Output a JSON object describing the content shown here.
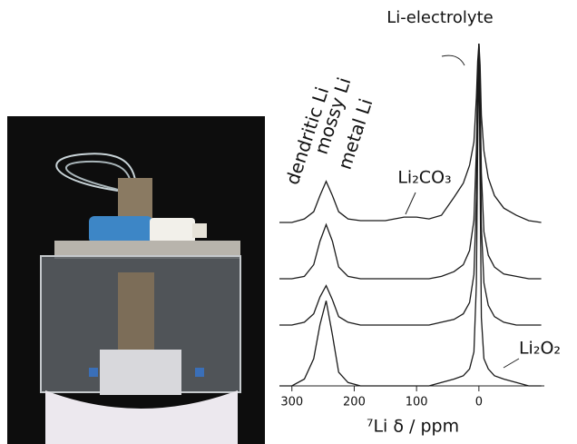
{
  "chart_data": [
    {
      "type": "line",
      "color": "#1a1a1a",
      "xlim": [
        320,
        -105
      ],
      "ylim": [
        0,
        100
      ],
      "annotations": [
        "Li-electrolyte",
        "dendritic Li",
        "mossy Li",
        "metal Li",
        "Li₂CO₃"
      ],
      "x": [
        320,
        300,
        280,
        265,
        255,
        245,
        235,
        225,
        210,
        190,
        150,
        120,
        100,
        80,
        60,
        40,
        25,
        15,
        8,
        4,
        2,
        0,
        -2,
        -4,
        -8,
        -15,
        -25,
        -40,
        -60,
        -80,
        -100
      ],
      "values": [
        0,
        0,
        2,
        6,
        15,
        23,
        15,
        6,
        2,
        1,
        1,
        3,
        3,
        2,
        4,
        14,
        22,
        32,
        45,
        70,
        90,
        100,
        88,
        60,
        40,
        25,
        15,
        8,
        4,
        1,
        0
      ]
    },
    {
      "type": "line",
      "color": "#1a1a1a",
      "xlim": [
        320,
        -105
      ],
      "ylim": [
        0,
        100
      ],
      "x": [
        320,
        300,
        280,
        265,
        255,
        245,
        235,
        225,
        210,
        190,
        150,
        120,
        100,
        80,
        60,
        40,
        25,
        15,
        8,
        4,
        2,
        0,
        -2,
        -4,
        -8,
        -15,
        -25,
        -40,
        -60,
        -80,
        -100
      ],
      "values": [
        0,
        0,
        1,
        6,
        16,
        23,
        16,
        5,
        1,
        0,
        0,
        0,
        0,
        0,
        1,
        3,
        6,
        12,
        25,
        55,
        85,
        100,
        80,
        45,
        20,
        10,
        5,
        2,
        1,
        0,
        0
      ]
    },
    {
      "type": "line",
      "color": "#1a1a1a",
      "xlim": [
        320,
        -105
      ],
      "ylim": [
        0,
        100
      ],
      "x": [
        320,
        300,
        280,
        265,
        255,
        245,
        235,
        225,
        210,
        190,
        150,
        120,
        100,
        80,
        60,
        40,
        25,
        15,
        8,
        4,
        2,
        0,
        -2,
        -4,
        -8,
        -15,
        -25,
        -40,
        -60,
        -80,
        -100
      ],
      "values": [
        0,
        0,
        1,
        4,
        10,
        14,
        9,
        3,
        1,
        0,
        0,
        0,
        0,
        0,
        1,
        2,
        4,
        8,
        18,
        45,
        80,
        100,
        75,
        35,
        15,
        7,
        3,
        1,
        0,
        0,
        0
      ]
    },
    {
      "type": "line",
      "color": "#1a1a1a",
      "xlim": [
        320,
        -105
      ],
      "ylim": [
        0,
        100
      ],
      "annotations": [
        "Li₂O₂"
      ],
      "xlabel": "⁷Li δ / ppm",
      "xticks": [
        300,
        200,
        100,
        0
      ],
      "x": [
        320,
        300,
        280,
        265,
        255,
        245,
        235,
        225,
        210,
        190,
        150,
        120,
        100,
        80,
        60,
        40,
        25,
        15,
        8,
        4,
        2,
        0,
        -2,
        -4,
        -8,
        -15,
        -25,
        -40,
        -60,
        -80,
        -100
      ],
      "values": [
        0,
        0,
        2,
        8,
        18,
        25,
        15,
        4,
        1,
        0,
        0,
        0,
        0,
        0,
        1,
        2,
        3,
        5,
        10,
        30,
        70,
        100,
        60,
        20,
        8,
        5,
        3,
        2,
        1,
        0,
        0
      ]
    }
  ]
}
